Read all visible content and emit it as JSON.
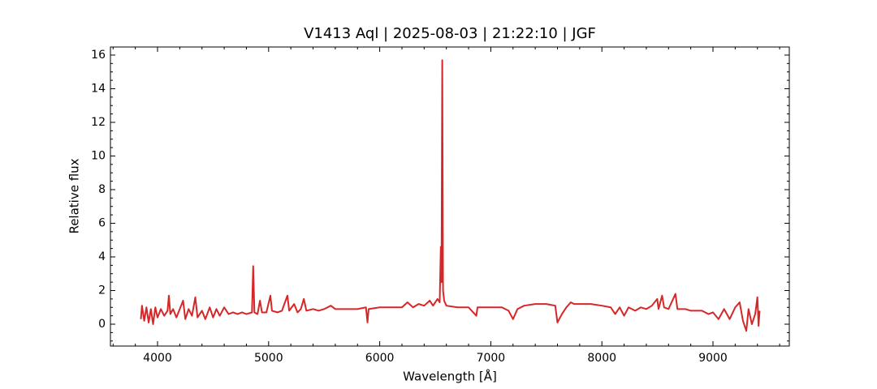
{
  "chart_data": {
    "type": "line",
    "title": "V1413 Aql | 2025-08-03 | 21:22:10 | JGF",
    "x_label": "Wavelength [Å]",
    "y_label": "Relative flux",
    "xlim": [
      3576,
      9687
    ],
    "ylim": [
      -1.3,
      16.48
    ],
    "xticks": [
      4000,
      5000,
      6000,
      7000,
      8000,
      9000
    ],
    "yticks": [
      0,
      2,
      4,
      6,
      8,
      10,
      12,
      14,
      16
    ],
    "xminorticks": [
      3600,
      3800,
      4200,
      4400,
      4600,
      4800,
      5200,
      5400,
      5600,
      5800,
      6200,
      6400,
      6600,
      6800,
      7200,
      7400,
      7600,
      7800,
      8200,
      8400,
      8600,
      8800,
      9200,
      9400,
      9600
    ],
    "yminorticks": [
      -1,
      -0.5,
      0.5,
      1,
      1.5,
      2.5,
      3,
      3.5,
      4.5,
      5,
      5.5,
      6.5,
      7,
      7.5,
      8.5,
      9,
      9.5,
      10.5,
      11,
      11.5,
      12.5,
      13,
      13.5,
      14.5,
      15,
      15.5
    ],
    "series": [
      {
        "color": "#d62728",
        "x": [
          3850,
          3860,
          3880,
          3900,
          3920,
          3940,
          3960,
          3980,
          4000,
          4030,
          4060,
          4090,
          4102,
          4115,
          4140,
          4170,
          4200,
          4230,
          4250,
          4280,
          4310,
          4340,
          4360,
          4400,
          4430,
          4470,
          4500,
          4530,
          4560,
          4600,
          4640,
          4680,
          4720,
          4760,
          4800,
          4850,
          4861,
          4872,
          4900,
          4922,
          4940,
          4980,
          5016,
          5030,
          5080,
          5120,
          5169,
          5185,
          5230,
          5260,
          5290,
          5317,
          5340,
          5400,
          5450,
          5500,
          5560,
          5600,
          5700,
          5800,
          5876,
          5890,
          5900,
          6000,
          6100,
          6200,
          6250,
          6300,
          6350,
          6400,
          6450,
          6480,
          6520,
          6540,
          6550,
          6556,
          6563,
          6570,
          6580,
          6600,
          6700,
          6800,
          6870,
          6880,
          7000,
          7100,
          7160,
          7200,
          7240,
          7300,
          7400,
          7500,
          7580,
          7600,
          7640,
          7680,
          7720,
          7750,
          7800,
          7900,
          8000,
          8080,
          8120,
          8160,
          8200,
          8240,
          8300,
          8350,
          8400,
          8450,
          8498,
          8510,
          8542,
          8560,
          8600,
          8662,
          8680,
          8750,
          8800,
          8900,
          8960,
          9000,
          9050,
          9100,
          9150,
          9200,
          9240,
          9270,
          9300,
          9320,
          9350,
          9380,
          9400,
          9410,
          9420
        ],
        "values": [
          0.3,
          1.1,
          0.2,
          1.0,
          0.1,
          0.9,
          0.0,
          1.0,
          0.4,
          0.9,
          0.5,
          0.8,
          1.7,
          0.6,
          0.9,
          0.4,
          0.9,
          1.4,
          0.3,
          0.9,
          0.5,
          1.6,
          0.4,
          0.8,
          0.3,
          1.0,
          0.4,
          0.9,
          0.5,
          1.0,
          0.6,
          0.7,
          0.6,
          0.7,
          0.6,
          0.7,
          3.45,
          0.7,
          0.6,
          1.4,
          0.7,
          0.7,
          1.7,
          0.8,
          0.7,
          0.8,
          1.7,
          0.8,
          1.2,
          0.7,
          0.9,
          1.5,
          0.8,
          0.9,
          0.8,
          0.9,
          1.1,
          0.9,
          0.9,
          0.9,
          1.0,
          0.1,
          0.9,
          1.0,
          1.0,
          1.0,
          1.3,
          1.0,
          1.2,
          1.1,
          1.4,
          1.1,
          1.5,
          1.3,
          4.6,
          2.5,
          15.7,
          2.0,
          1.4,
          1.1,
          1.0,
          1.0,
          0.5,
          1.0,
          1.0,
          1.0,
          0.8,
          0.3,
          0.9,
          1.1,
          1.2,
          1.2,
          1.1,
          0.1,
          0.6,
          1.0,
          1.3,
          1.2,
          1.2,
          1.2,
          1.1,
          1.0,
          0.6,
          1.0,
          0.5,
          1.0,
          0.8,
          1.0,
          0.9,
          1.1,
          1.5,
          0.9,
          1.7,
          1.0,
          0.9,
          1.8,
          0.9,
          0.9,
          0.8,
          0.8,
          0.6,
          0.7,
          0.3,
          0.9,
          0.3,
          1.0,
          1.3,
          0.2,
          -0.4,
          0.9,
          0.0,
          0.6,
          1.6,
          -0.1,
          0.8
        ]
      }
    ]
  }
}
